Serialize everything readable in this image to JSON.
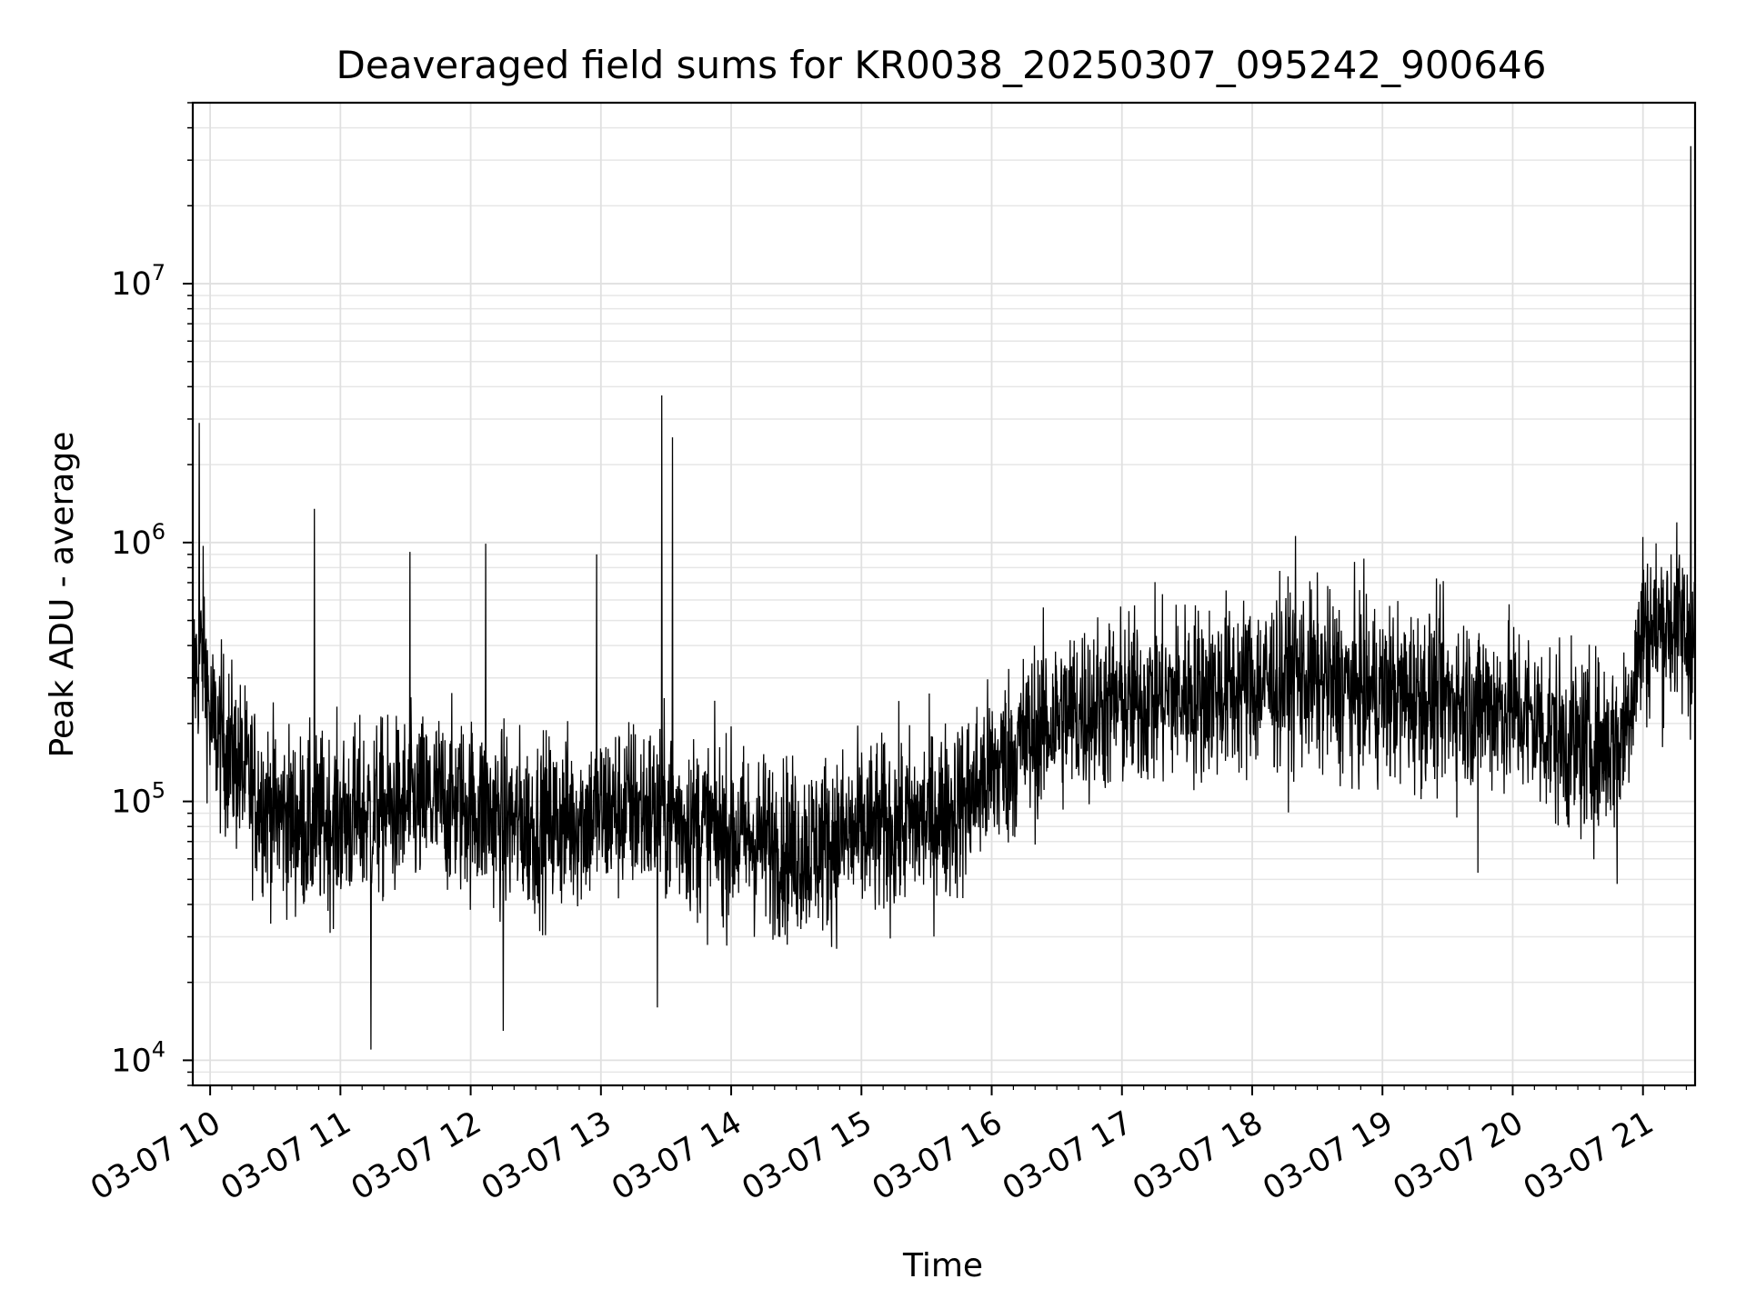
{
  "chart_data": {
    "type": "line",
    "title": "Deaveraged field sums for KR0038_20250307_095242_900646",
    "xlabel": "Time",
    "ylabel": "Peak ADU - average",
    "y_scale": "log",
    "ylim": [
      8000,
      50000000
    ],
    "xlim": [
      "2025-03-07 09:52",
      "2025-03-07 21:24"
    ],
    "x_ticks": [
      "03-07 10",
      "03-07 11",
      "03-07 12",
      "03-07 13",
      "03-07 14",
      "03-07 15",
      "03-07 16",
      "03-07 17",
      "03-07 18",
      "03-07 19",
      "03-07 20",
      "03-07 21"
    ],
    "y_ticks": [
      {
        "base": "10",
        "exp": "4",
        "value": 10000
      },
      {
        "base": "10",
        "exp": "5",
        "value": 100000
      },
      {
        "base": "10",
        "exp": "6",
        "value": 1000000
      },
      {
        "base": "10",
        "exp": "7",
        "value": 10000000
      }
    ],
    "grid": true,
    "line_color": "#000000",
    "series": [
      {
        "values_note_hour_value_pairs": true,
        "points": [
          [
            "2025-03-07 09:52",
            300000
          ],
          [
            "2025-03-07 09:55",
            2900000
          ],
          [
            "2025-03-07 09:57",
            400000
          ],
          [
            "2025-03-07 10:00",
            200000
          ],
          [
            "2025-03-07 10:10",
            150000
          ],
          [
            "2025-03-07 10:20",
            110000
          ],
          [
            "2025-03-07 10:30",
            90000
          ],
          [
            "2025-03-07 10:45",
            80000
          ],
          [
            "2025-03-07 11:00",
            85000
          ],
          [
            "2025-03-07 11:15",
            90000
          ],
          [
            "2025-03-07 11:30",
            95000
          ],
          [
            "2025-03-07 11:45",
            100000
          ],
          [
            "2025-03-07 12:00",
            95000
          ],
          [
            "2025-03-07 12:15",
            85000
          ],
          [
            "2025-03-07 12:30",
            80000
          ],
          [
            "2025-03-07 12:45",
            85000
          ],
          [
            "2025-03-07 13:00",
            90000
          ],
          [
            "2025-03-07 13:15",
            95000
          ],
          [
            "2025-03-07 13:28",
            3700000
          ],
          [
            "2025-03-07 13:30",
            90000
          ],
          [
            "2025-03-07 13:45",
            80000
          ],
          [
            "2025-03-07 14:00",
            75000
          ],
          [
            "2025-03-07 14:15",
            70000
          ],
          [
            "2025-03-07 14:30",
            65000
          ],
          [
            "2025-03-07 14:45",
            70000
          ],
          [
            "2025-03-07 15:00",
            75000
          ],
          [
            "2025-03-07 15:15",
            80000
          ],
          [
            "2025-03-07 15:30",
            85000
          ],
          [
            "2025-03-07 15:45",
            95000
          ],
          [
            "2025-03-07 16:00",
            130000
          ],
          [
            "2025-03-07 16:15",
            170000
          ],
          [
            "2025-03-07 16:30",
            210000
          ],
          [
            "2025-03-07 16:45",
            230000
          ],
          [
            "2025-03-07 17:00",
            240000
          ],
          [
            "2025-03-07 17:30",
            260000
          ],
          [
            "2025-03-07 18:00",
            280000
          ],
          [
            "2025-03-07 18:20",
            300000
          ],
          [
            "2025-03-07 18:40",
            280000
          ],
          [
            "2025-03-07 19:00",
            260000
          ],
          [
            "2025-03-07 19:30",
            250000
          ],
          [
            "2025-03-07 20:00",
            230000
          ],
          [
            "2025-03-07 20:30",
            160000
          ],
          [
            "2025-03-07 20:50",
            170000
          ],
          [
            "2025-03-07 21:00",
            450000
          ],
          [
            "2025-03-07 21:15",
            500000
          ],
          [
            "2025-03-07 21:22",
            34000000
          ],
          [
            "2025-03-07 21:24",
            400000
          ]
        ],
        "spikes": [
          [
            "2025-03-07 10:48",
            1350000
          ],
          [
            "2025-03-07 11:32",
            920000
          ],
          [
            "2025-03-07 12:07",
            990000
          ],
          [
            "2025-03-07 12:58",
            900000
          ],
          [
            "2025-03-07 13:33",
            2550000
          ],
          [
            "2025-03-07 18:20",
            1060000
          ],
          [
            "2025-03-07 21:00",
            1050000
          ]
        ],
        "dips": [
          [
            "2025-03-07 11:14",
            11000
          ],
          [
            "2025-03-07 12:15",
            13000
          ],
          [
            "2025-03-07 13:26",
            16000
          ],
          [
            "2025-03-07 19:44",
            53000
          ],
          [
            "2025-03-07 20:48",
            48000
          ]
        ]
      }
    ]
  }
}
